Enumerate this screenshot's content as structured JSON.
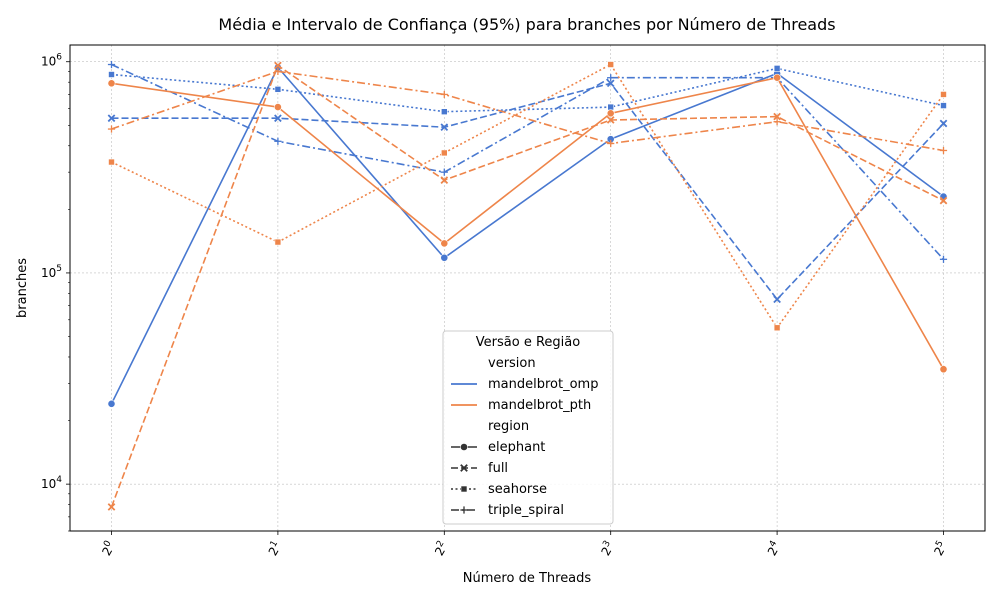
{
  "chart_data": {
    "type": "line",
    "title": "Média e Intervalo de Confiança (95%) para branches por Número de Threads",
    "xlabel": "Número de Threads",
    "ylabel": "branches",
    "yscale": "log",
    "ylim": [
      6000,
      1200000
    ],
    "grid": true,
    "x": [
      1,
      2,
      4,
      8,
      16,
      32
    ],
    "x_tick_labels": [
      {
        "base": "2",
        "exp": "0"
      },
      {
        "base": "2",
        "exp": "1"
      },
      {
        "base": "2",
        "exp": "2"
      },
      {
        "base": "2",
        "exp": "3"
      },
      {
        "base": "2",
        "exp": "4"
      },
      {
        "base": "2",
        "exp": "5"
      }
    ],
    "y_ticks": [
      {
        "value": 10000,
        "base": "10",
        "exp": "4"
      },
      {
        "value": 100000,
        "base": "10",
        "exp": "5"
      },
      {
        "value": 1000000,
        "base": "10",
        "exp": "6"
      }
    ],
    "legend": {
      "title": "Versão e Região",
      "placement": "lower-center",
      "version_header": "version",
      "region_header": "region",
      "versions": [
        {
          "name": "mandelbrot_omp",
          "color": "#4878d0"
        },
        {
          "name": "mandelbrot_pth",
          "color": "#ee854a"
        }
      ],
      "regions": [
        {
          "name": "elephant",
          "marker": "circle",
          "dash": "solid"
        },
        {
          "name": "full",
          "marker": "x",
          "dash": "dashed"
        },
        {
          "name": "seahorse",
          "marker": "square",
          "dash": "dotted"
        },
        {
          "name": "triple_spiral",
          "marker": "plus",
          "dash": "dashdot"
        }
      ]
    },
    "series": [
      {
        "version": "mandelbrot_omp",
        "region": "elephant",
        "values": [
          24000,
          940000,
          118000,
          430000,
          880000,
          230000
        ]
      },
      {
        "version": "mandelbrot_omp",
        "region": "full",
        "values": [
          540000,
          540000,
          490000,
          790000,
          75000,
          510000
        ]
      },
      {
        "version": "mandelbrot_omp",
        "region": "seahorse",
        "values": [
          870000,
          740000,
          580000,
          610000,
          930000,
          620000
        ]
      },
      {
        "version": "mandelbrot_omp",
        "region": "triple_spiral",
        "values": [
          970000,
          420000,
          300000,
          840000,
          840000,
          116000
        ]
      },
      {
        "version": "mandelbrot_pth",
        "region": "elephant",
        "values": [
          790000,
          610000,
          138000,
          570000,
          840000,
          35000
        ]
      },
      {
        "version": "mandelbrot_pth",
        "region": "full",
        "values": [
          7800,
          960000,
          275000,
          530000,
          550000,
          220000
        ]
      },
      {
        "version": "mandelbrot_pth",
        "region": "seahorse",
        "values": [
          335000,
          140000,
          370000,
          970000,
          55000,
          700000
        ]
      },
      {
        "version": "mandelbrot_pth",
        "region": "triple_spiral",
        "values": [
          480000,
          900000,
          700000,
          410000,
          520000,
          380000
        ]
      }
    ]
  }
}
